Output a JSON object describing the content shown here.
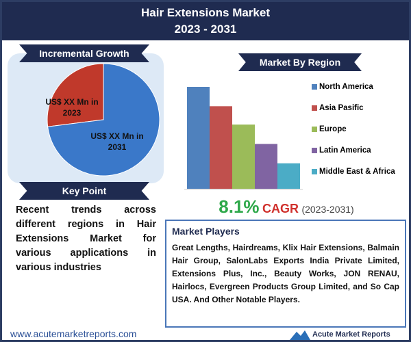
{
  "header": {
    "title": "Hair Extensions Market",
    "subtitle": "2023 - 2031"
  },
  "chart_data": [
    {
      "type": "pie",
      "title": "Incremental Growth",
      "categories": [
        "US$ XX Mn in 2023",
        "US$ XX Mn in 2031"
      ],
      "values": [
        27,
        73
      ],
      "colors": [
        "#c0392b",
        "#3a78c9"
      ]
    },
    {
      "type": "bar",
      "title": "Market By Region",
      "categories": [
        "North America",
        "Asia Pasific",
        "Europe",
        "Latin America",
        "Middle East & Africa"
      ],
      "values": [
        100,
        81,
        63,
        44,
        25
      ],
      "colors": [
        "#4f81bd",
        "#c0504d",
        "#9bbb59",
        "#8064a2",
        "#4bacc6"
      ]
    }
  ],
  "cagr": {
    "value": "8.1%",
    "label": "CAGR",
    "period": "(2023-2031)"
  },
  "key_point": {
    "title": "Key Point",
    "text": "Recent trends across different regions in Hair Extensions Market for various applications in various industries"
  },
  "market_players": {
    "title": "Market Players",
    "text": "Great Lengths, Hairdreams, Klix Hair Extensions, Balmain Hair Group, SalonLabs Exports India Private Limited, Extensions Plus, Inc., Beauty Works, JON RENAU, Hairlocs, Evergreen Products Group Limited, and So Cap USA. And Other Notable Players."
  },
  "footer": {
    "website": "www.acutemarketreports.com",
    "logo": "Acute Market Reports"
  }
}
